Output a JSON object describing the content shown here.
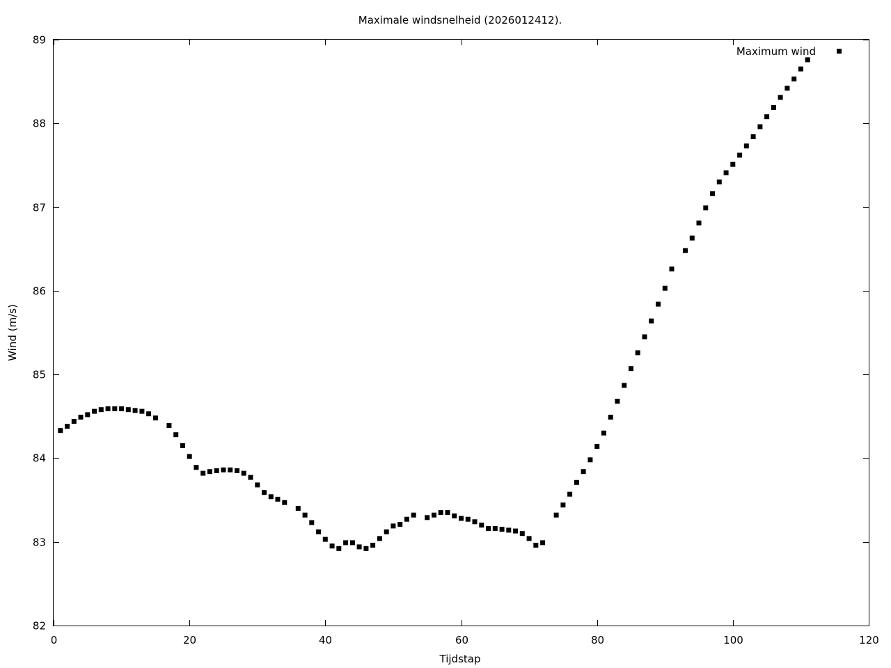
{
  "chart_data": {
    "type": "scatter",
    "title": "Maximale windsnelheid (2026012412).",
    "xlabel": "Tijdstap",
    "ylabel": "Wind (m/s)",
    "xlim": [
      0,
      120
    ],
    "ylim": [
      82,
      89
    ],
    "xticks": [
      0,
      20,
      40,
      60,
      80,
      100,
      120
    ],
    "yticks": [
      82,
      83,
      84,
      85,
      86,
      87,
      88,
      89
    ],
    "grid": false,
    "legend_position": "top-right",
    "marker_color": "#000000",
    "series": [
      {
        "name": "Maximum wind",
        "points": [
          [
            1,
            84.33
          ],
          [
            2,
            84.38
          ],
          [
            3,
            84.44
          ],
          [
            4,
            84.49
          ],
          [
            5,
            84.52
          ],
          [
            6,
            84.56
          ],
          [
            7,
            84.58
          ],
          [
            8,
            84.59
          ],
          [
            9,
            84.59
          ],
          [
            10,
            84.59
          ],
          [
            11,
            84.58
          ],
          [
            12,
            84.57
          ],
          [
            13,
            84.56
          ],
          [
            14,
            84.53
          ],
          [
            15,
            84.48
          ],
          [
            17,
            84.39
          ],
          [
            18,
            84.28
          ],
          [
            19,
            84.15
          ],
          [
            20,
            84.02
          ],
          [
            21,
            83.89
          ],
          [
            22,
            83.82
          ],
          [
            23,
            83.84
          ],
          [
            24,
            83.85
          ],
          [
            25,
            83.86
          ],
          [
            26,
            83.86
          ],
          [
            27,
            83.85
          ],
          [
            28,
            83.82
          ],
          [
            29,
            83.77
          ],
          [
            30,
            83.68
          ],
          [
            31,
            83.59
          ],
          [
            32,
            83.54
          ],
          [
            33,
            83.51
          ],
          [
            34,
            83.47
          ],
          [
            36,
            83.4
          ],
          [
            37,
            83.32
          ],
          [
            38,
            83.23
          ],
          [
            39,
            83.12
          ],
          [
            40,
            83.03
          ],
          [
            41,
            82.95
          ],
          [
            42,
            82.92
          ],
          [
            43,
            82.99
          ],
          [
            44,
            82.99
          ],
          [
            45,
            82.94
          ],
          [
            46,
            82.92
          ],
          [
            47,
            82.96
          ],
          [
            48,
            83.04
          ],
          [
            49,
            83.12
          ],
          [
            50,
            83.19
          ],
          [
            51,
            83.21
          ],
          [
            52,
            83.27
          ],
          [
            53,
            83.32
          ],
          [
            55,
            83.29
          ],
          [
            56,
            83.32
          ],
          [
            57,
            83.35
          ],
          [
            58,
            83.35
          ],
          [
            59,
            83.31
          ],
          [
            60,
            83.28
          ],
          [
            61,
            83.27
          ],
          [
            62,
            83.24
          ],
          [
            63,
            83.2
          ],
          [
            64,
            83.16
          ],
          [
            65,
            83.16
          ],
          [
            66,
            83.15
          ],
          [
            67,
            83.14
          ],
          [
            68,
            83.13
          ],
          [
            69,
            83.1
          ],
          [
            70,
            83.04
          ],
          [
            71,
            82.96
          ],
          [
            72,
            82.99
          ],
          [
            74,
            83.32
          ],
          [
            75,
            83.44
          ],
          [
            76,
            83.57
          ],
          [
            77,
            83.71
          ],
          [
            78,
            83.84
          ],
          [
            79,
            83.98
          ],
          [
            80,
            84.14
          ],
          [
            81,
            84.3
          ],
          [
            82,
            84.49
          ],
          [
            83,
            84.68
          ],
          [
            84,
            84.87
          ],
          [
            85,
            85.07
          ],
          [
            86,
            85.26
          ],
          [
            87,
            85.45
          ],
          [
            88,
            85.64
          ],
          [
            89,
            85.84
          ],
          [
            90,
            86.03
          ],
          [
            91,
            86.26
          ],
          [
            93,
            86.48
          ],
          [
            94,
            86.63
          ],
          [
            95,
            86.81
          ],
          [
            96,
            86.99
          ],
          [
            97,
            87.16
          ],
          [
            98,
            87.3
          ],
          [
            99,
            87.41
          ],
          [
            100,
            87.51
          ],
          [
            101,
            87.62
          ],
          [
            102,
            87.73
          ],
          [
            103,
            87.84
          ],
          [
            104,
            87.96
          ],
          [
            105,
            88.08
          ],
          [
            106,
            88.19
          ],
          [
            107,
            88.31
          ],
          [
            108,
            88.42
          ],
          [
            109,
            88.53
          ],
          [
            110,
            88.65
          ],
          [
            111,
            88.76
          ]
        ]
      }
    ]
  }
}
